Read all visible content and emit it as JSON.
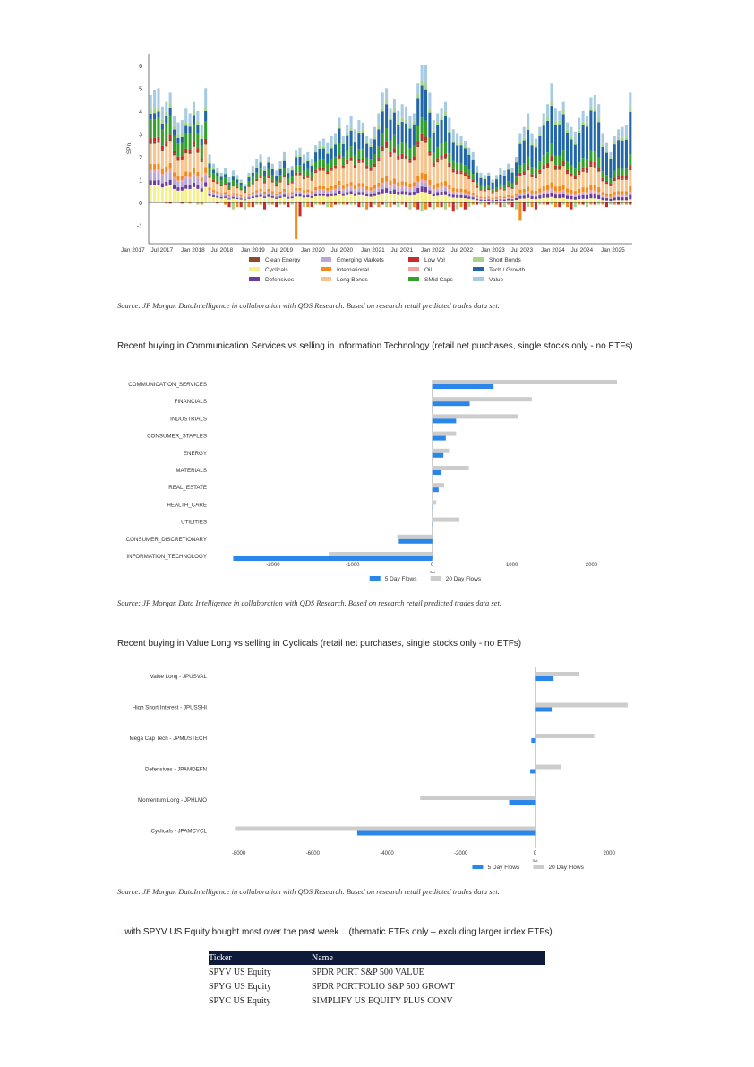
{
  "chart_data": [
    {
      "type": "bar",
      "stacked": true,
      "ylabel": "SPn",
      "ylim": [
        -1.8,
        6.5
      ],
      "yticks": [
        -1,
        0,
        1,
        2,
        3,
        4,
        5,
        6
      ],
      "xtick_labels": [
        "Jan 2017",
        "Jul 2017",
        "Jan 2018",
        "Jul 2018",
        "Jan 2019",
        "Jul 2019",
        "Jan 2020",
        "Jul 2020",
        "Jan 2021",
        "Jul 2021",
        "Jan 2022",
        "Jul 2022",
        "Jan 2023",
        "Jul 2023",
        "Jan 2024",
        "Jul 2024",
        "Jan 2025"
      ],
      "legend_position": "bottom",
      "series": [
        {
          "name": "Clean Energy",
          "color": "#8b4a2b"
        },
        {
          "name": "Emerging Markets",
          "color": "#b9a8d6"
        },
        {
          "name": "Low Vol",
          "color": "#cc2a2a"
        },
        {
          "name": "Short Bonds",
          "color": "#a9d38a"
        },
        {
          "name": "Cyclicals",
          "color": "#f5f08a"
        },
        {
          "name": "International",
          "color": "#f28a1c"
        },
        {
          "name": "Oil",
          "color": "#f2a0a0"
        },
        {
          "name": "Tech / Growth",
          "color": "#2166a6"
        },
        {
          "name": "Defensives",
          "color": "#6a3d9a"
        },
        {
          "name": "Long Bonds",
          "color": "#f6c48e"
        },
        {
          "name": "SMid Caps",
          "color": "#33a02c"
        },
        {
          "name": "Value",
          "color": "#a6cbe3"
        }
      ],
      "totals": [
        4.7,
        4.9,
        5.0,
        4.2,
        4.4,
        4.8,
        3.8,
        3.5,
        3.6,
        4.1,
        3.9,
        4.4,
        4.0,
        3.4,
        5.0,
        2.1,
        1.7,
        1.5,
        1.3,
        1.5,
        1.1,
        1.4,
        1.2,
        1.0,
        0.8,
        1.3,
        1.6,
        1.9,
        2.1,
        1.6,
        2.0,
        1.7,
        1.4,
        1.8,
        2.2,
        1.5,
        1.6,
        2.3,
        2.4,
        2.1,
        2.2,
        1.9,
        2.5,
        2.7,
        2.8,
        2.6,
        2.9,
        3.0,
        3.7,
        2.9,
        3.4,
        3.8,
        3.2,
        3.6,
        3.5,
        2.9,
        2.8,
        3.3,
        3.9,
        4.8,
        5.0,
        4.1,
        4.5,
        4.0,
        4.3,
        4.2,
        3.8,
        3.9,
        5.2,
        6.0,
        6.0,
        4.8,
        3.6,
        3.9,
        4.1,
        4.4,
        3.7,
        3.2,
        3.0,
        2.9,
        2.7,
        2.4,
        2.2,
        1.6,
        1.3,
        1.2,
        1.3,
        1.0,
        1.2,
        1.5,
        1.4,
        1.7,
        1.5,
        2.0,
        3.0,
        3.3,
        3.9,
        3.0,
        2.8,
        3.3,
        3.9,
        4.3,
        5.2,
        4.1,
        4.0,
        4.4,
        3.5,
        3.3,
        3.1,
        3.7,
        4.0,
        3.8,
        4.6,
        4.7,
        4.3,
        3.0,
        2.6,
        2.2,
        2.9,
        3.2,
        3.3,
        3.4,
        4.8
      ],
      "negatives": [
        0,
        0,
        0,
        0,
        -0.05,
        -0.05,
        0,
        0,
        -0.05,
        0,
        -0.05,
        0,
        -0.1,
        -0.1,
        0,
        0,
        0,
        -0.05,
        0,
        -0.1,
        -0.2,
        -0.3,
        -0.2,
        -0.2,
        -0.3,
        -0.2,
        -0.2,
        -0.1,
        -0.1,
        -0.3,
        -0.1,
        -0.1,
        -0.2,
        -0.1,
        -0.1,
        -0.2,
        -0.1,
        -1.6,
        -0.6,
        -0.2,
        -0.2,
        -0.2,
        -0.1,
        -0.1,
        -0.1,
        -0.2,
        -0.2,
        -0.1,
        -0.1,
        -0.1,
        -0.1,
        -0.1,
        -0.1,
        -0.2,
        -0.2,
        -0.3,
        -0.2,
        -0.1,
        -0.2,
        -0.1,
        -0.2,
        -0.2,
        -0.1,
        -0.2,
        -0.1,
        -0.2,
        -0.3,
        -0.2,
        -0.3,
        -0.4,
        -0.3,
        -0.2,
        -0.3,
        -0.2,
        -0.2,
        -0.3,
        -0.2,
        -0.4,
        -0.3,
        -0.2,
        -0.3,
        -0.2,
        -0.1,
        -0.1,
        -0.1,
        -0.2,
        -0.1,
        -0.1,
        -0.1,
        -0.2,
        -0.2,
        -0.1,
        -0.2,
        -0.3,
        -0.8,
        -0.4,
        -0.2,
        -0.2,
        -0.3,
        -0.1,
        -0.1,
        -0.1,
        -0.1,
        -0.2,
        -0.2,
        -0.1,
        -0.2,
        -0.3,
        -0.2,
        -0.1,
        -0.1,
        -0.2,
        -0.1,
        -0.1,
        -0.1,
        -0.1,
        -0.2,
        -0.1,
        -0.1,
        -0.1,
        -0.1,
        -0.1,
        -0.1
      ]
    },
    {
      "type": "bar",
      "orientation": "horizontal",
      "categories": [
        "COMMUNICATION_SERVICES",
        "FINANCIALS",
        "INDUSTRIALS",
        "CONSUMER_STAPLES",
        "ENERGY",
        "MATERIALS",
        "REAL_ESTATE",
        "HEALTH_CARE",
        "UTILITIES",
        "CONSUMER_DISCRETIONARY",
        "INFORMATION_TECHNOLOGY"
      ],
      "series": [
        {
          "name": "5 Day Flows",
          "color": "#2a86e8",
          "values": [
            770,
            470,
            300,
            170,
            140,
            110,
            80,
            10,
            10,
            -420,
            -2500
          ]
        },
        {
          "name": "20 Day Flows",
          "color": "#cccccc",
          "values": [
            2320,
            1250,
            1080,
            300,
            210,
            460,
            150,
            50,
            340,
            -440,
            -1300
          ]
        }
      ],
      "xlim": [
        -2550,
        2500
      ],
      "xticks": [
        -2000,
        -1000,
        0,
        1000,
        2000
      ],
      "xlabel": "Sat",
      "legend_position": "bottom"
    },
    {
      "type": "bar",
      "orientation": "horizontal",
      "categories": [
        "Value Long - JPUSVAL",
        "High Short Interest - JPUSSHI",
        "Mega Cap Tech - JPMUSTECH",
        "Defensives - JPAMDEFN",
        "Momentum Long - JPHLMO",
        "Cyclicals - JPAMCYCL"
      ],
      "series": [
        {
          "name": "5 Day Flows",
          "color": "#2a86e8",
          "values": [
            500,
            450,
            -100,
            -130,
            -700,
            -4800
          ]
        },
        {
          "name": "20 Day Flows",
          "color": "#cccccc",
          "values": [
            1200,
            2500,
            1600,
            700,
            -3100,
            -8100
          ]
        }
      ],
      "xlim": [
        -8400,
        2600
      ],
      "xticks": [
        -8000,
        -6000,
        -4000,
        -2000,
        0,
        2000
      ],
      "xlabel": "Sat",
      "legend_position": "bottom"
    }
  ],
  "sources": [
    "Source: JP Morgan DataIntelligence in collaboration with QDS Research. Based on research retail predicted trades data set.",
    "Source: JP Morgan Data Intelligence in collaboration with QDS Research. Based on research retail predicted trades data set.",
    "Source: JP Morgan DataIntelligence in collaboration with QDS Research. Based on research retail predicted trades data set."
  ],
  "titles": {
    "sector": "Recent buying in Communication Services vs selling in Information Technology (retail net purchases, single stocks only - no ETFs)",
    "factor": "Recent buying in Value Long vs selling in Cyclicals (retail net purchases, single stocks only - no ETFs)",
    "etf": "...with SPYV US Equity bought most over the past week... (thematic ETFs only – excluding larger index ETFs)"
  },
  "etf_table": {
    "headers": [
      "Ticker",
      "Name"
    ],
    "rows": [
      [
        "SPYV US Equity",
        "SPDR PORT S&P 500 VALUE"
      ],
      [
        "SPYG US Equity",
        "SPDR PORTFOLIO S&P 500 GROWT"
      ],
      [
        "SPYC US Equity",
        "SIMPLIFY US EQUITY PLUS CONV"
      ]
    ]
  }
}
